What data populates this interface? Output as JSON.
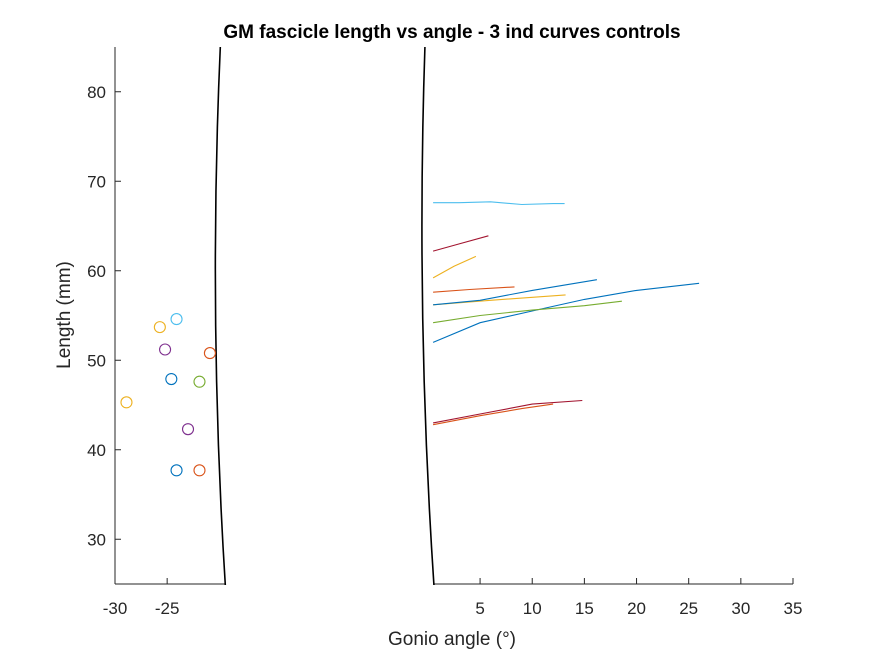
{
  "chart_data": {
    "type": "scatter",
    "title": "GM fascicle length vs angle - 3 ind curves controls",
    "xlabel": "Gonio angle (°)",
    "ylabel": "Length (mm)",
    "xlim": [
      -30,
      35
    ],
    "ylim": [
      25,
      85
    ],
    "x_ticks": [
      -30,
      -25,
      5,
      10,
      15,
      20,
      25,
      30,
      35
    ],
    "x_tick_labels": [
      "-30",
      "-25",
      "5",
      "10",
      "15",
      "20",
      "25",
      "30",
      "35"
    ],
    "y_ticks": [
      30,
      40,
      50,
      60,
      70,
      80
    ],
    "y_tick_labels": [
      "30",
      "40",
      "50",
      "60",
      "70",
      "80"
    ],
    "axis_break": {
      "from": -20,
      "to": 0,
      "style": "double-curve"
    },
    "markers": [
      {
        "x": -28.9,
        "y": 45.3,
        "color": "#EDB120"
      },
      {
        "x": -25.7,
        "y": 53.7,
        "color": "#EDB120"
      },
      {
        "x": -25.2,
        "y": 51.2,
        "color": "#7E2F8E"
      },
      {
        "x": -24.6,
        "y": 47.9,
        "color": "#0072BD"
      },
      {
        "x": -24.1,
        "y": 54.6,
        "color": "#4DBEEE"
      },
      {
        "x": -24.1,
        "y": 37.7,
        "color": "#0072BD"
      },
      {
        "x": -23.0,
        "y": 42.3,
        "color": "#7E2F8E"
      },
      {
        "x": -21.9,
        "y": 37.7,
        "color": "#D95319"
      },
      {
        "x": -21.9,
        "y": 47.6,
        "color": "#77AC30"
      },
      {
        "x": -20.9,
        "y": 50.8,
        "color": "#D95319"
      }
    ],
    "series": [
      {
        "color": "#4DBEEE",
        "x": [
          0.5,
          3,
          6,
          9,
          12,
          13.1
        ],
        "y": [
          67.6,
          67.6,
          67.7,
          67.4,
          67.5,
          67.5
        ]
      },
      {
        "color": "#A2142F",
        "x": [
          0.5,
          3,
          5.8
        ],
        "y": [
          62.2,
          63.0,
          63.9
        ]
      },
      {
        "color": "#EDB120",
        "x": [
          0.5,
          2.5,
          4.6
        ],
        "y": [
          59.2,
          60.5,
          61.6
        ]
      },
      {
        "color": "#D95319",
        "x": [
          0.5,
          4,
          8.3
        ],
        "y": [
          57.6,
          57.9,
          58.2
        ]
      },
      {
        "color": "#EDB120",
        "x": [
          0.5,
          6,
          13.2
        ],
        "y": [
          56.2,
          56.7,
          57.3
        ]
      },
      {
        "color": "#0072BD",
        "x": [
          0.5,
          5,
          10,
          16.2
        ],
        "y": [
          56.2,
          56.7,
          57.8,
          59.0
        ]
      },
      {
        "color": "#0072BD",
        "x": [
          0.5,
          5,
          10,
          15,
          20,
          26.0
        ],
        "y": [
          52.0,
          54.2,
          55.5,
          56.8,
          57.8,
          58.6
        ]
      },
      {
        "color": "#77AC30",
        "x": [
          0.5,
          5,
          10,
          15,
          18.6
        ],
        "y": [
          54.2,
          55.0,
          55.6,
          56.1,
          56.6
        ]
      },
      {
        "color": "#A2142F",
        "x": [
          0.5,
          5,
          10,
          14.8
        ],
        "y": [
          43.0,
          44.0,
          45.1,
          45.5
        ]
      },
      {
        "color": "#D95319",
        "x": [
          0.5,
          5,
          9,
          12.0
        ],
        "y": [
          42.8,
          43.8,
          44.6,
          45.1
        ]
      }
    ]
  }
}
